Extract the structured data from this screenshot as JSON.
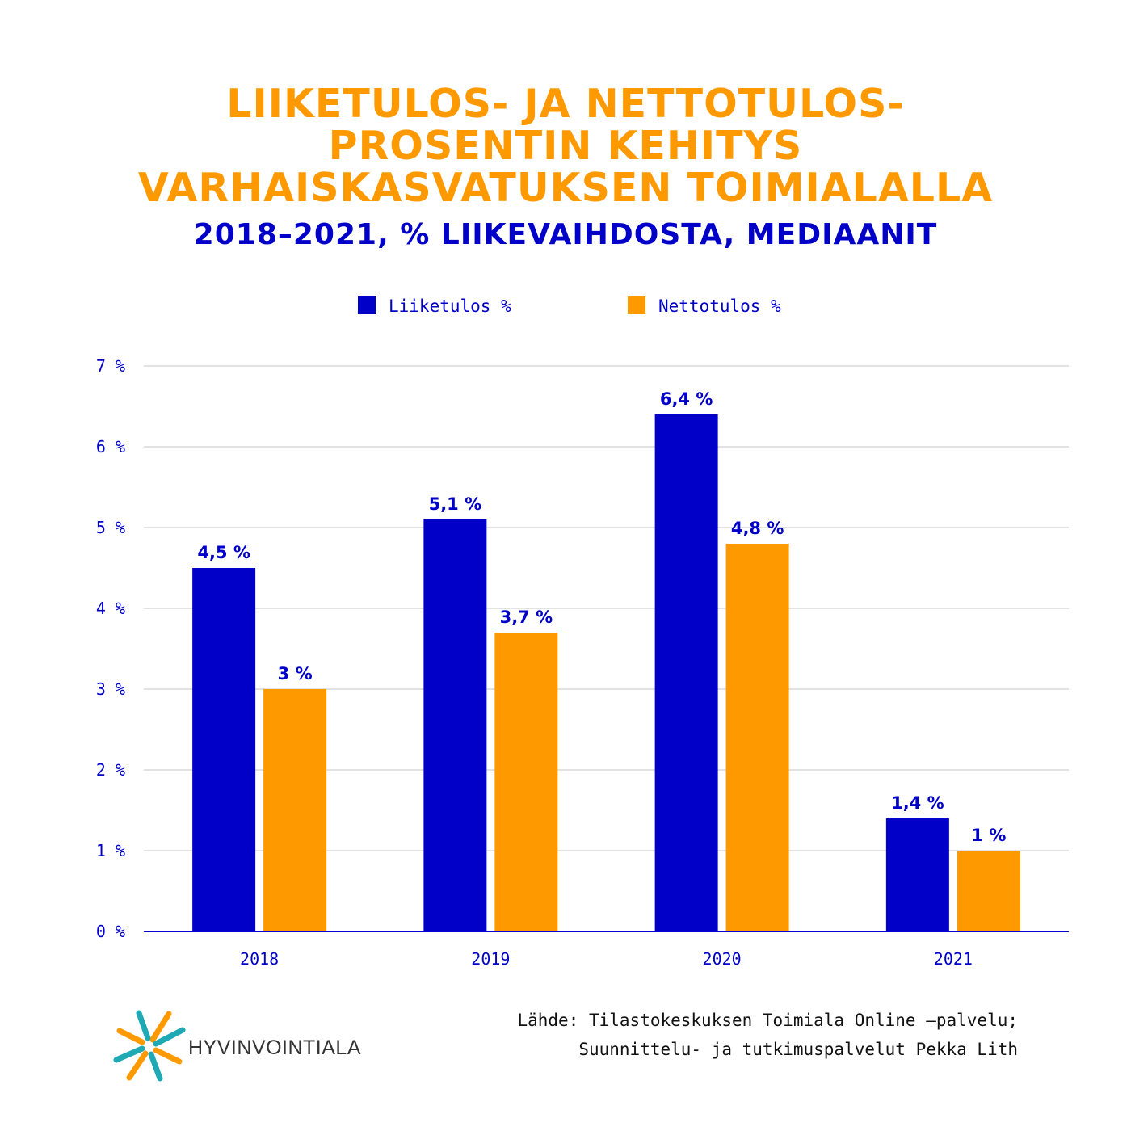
{
  "title_lines": [
    "LIIKETULOS- JA NETTOTULOS-",
    "PROSENTIN KEHITYS",
    "VARHAISKASVATUKSEN TOIMIALALLA"
  ],
  "subtitle": "2018–2021, % LIIKEVAIHDOSTA, MEDIAANIT",
  "source_lines": [
    "Lähde: Tilastokeskuksen Toimiala Online –palvelu;",
    "Suunnittelu- ja tutkimuspalvelut Pekka Lith"
  ],
  "logo_text": "HYVINVOINTIALA",
  "colors": {
    "liiketulos": "#0000c8",
    "nettotulos": "#ff9900",
    "text_blue": "#0000c8",
    "grid": "#d9d9d9"
  },
  "chart_data": {
    "type": "bar",
    "categories": [
      "2018",
      "2019",
      "2020",
      "2021"
    ],
    "series": [
      {
        "name": "Liiketulos %",
        "values": [
          4.5,
          5.1,
          6.4,
          1.4
        ],
        "labels": [
          "4,5 %",
          "5,1 %",
          "6,4 %",
          "1,4 %"
        ]
      },
      {
        "name": "Nettotulos %",
        "values": [
          3,
          3.7,
          4.8,
          1
        ],
        "labels": [
          "3 %",
          "3,7 %",
          "4,8 %",
          "1 %"
        ]
      }
    ],
    "yticks": [
      "0 %",
      "1 %",
      "2 %",
      "3 %",
      "4 %",
      "5 %",
      "6 %",
      "7 %"
    ],
    "ylim": [
      0,
      7
    ],
    "grid": true,
    "legend": "top-center"
  }
}
